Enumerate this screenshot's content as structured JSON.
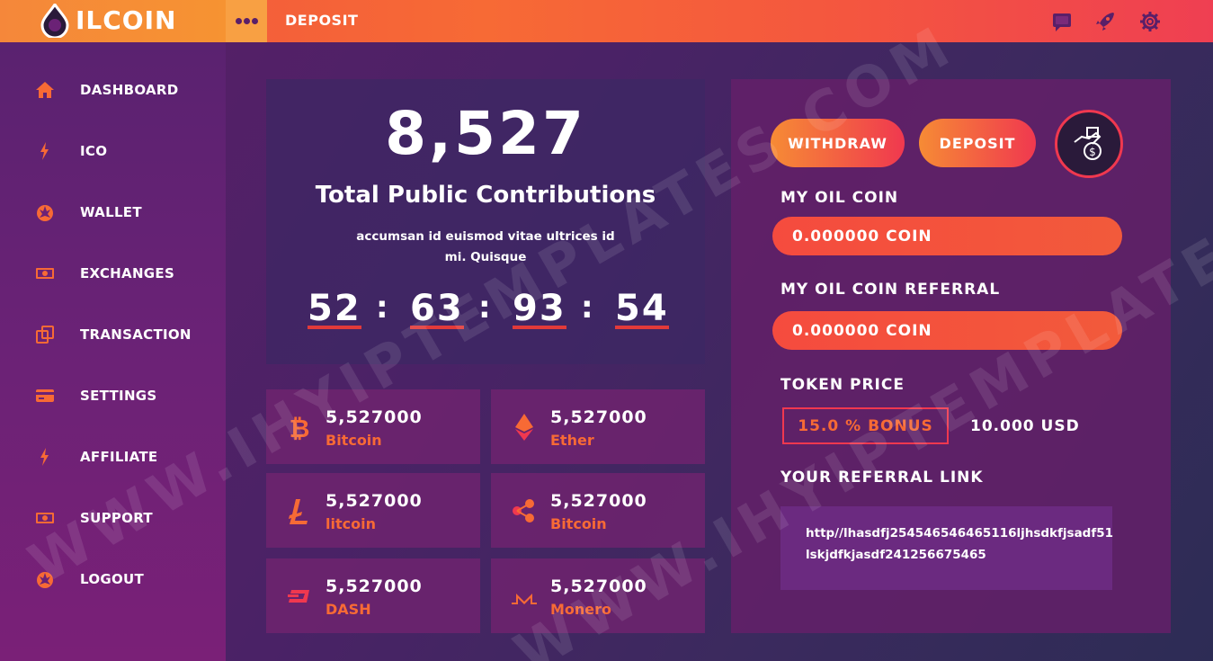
{
  "brand": {
    "logo_text": "ILCOIN"
  },
  "header": {
    "title": "DEPOSIT"
  },
  "sidebar": {
    "items": [
      {
        "label": "DASHBOARD",
        "icon": "home-icon"
      },
      {
        "label": "ICO",
        "icon": "bolt-icon"
      },
      {
        "label": "WALLET",
        "icon": "rebel-icon"
      },
      {
        "label": "EXCHANGES",
        "icon": "money-icon"
      },
      {
        "label": "TRANSACTION",
        "icon": "copy-icon"
      },
      {
        "label": "SETTINGS",
        "icon": "card-icon"
      },
      {
        "label": "AFFILIATE",
        "icon": "bolt-icon"
      },
      {
        "label": "SUPPORT",
        "icon": "money-icon"
      },
      {
        "label": "LOGOUT",
        "icon": "rebel-icon"
      }
    ]
  },
  "hero": {
    "number": "8,527",
    "title": "Total Public Contributions",
    "subtitle_line1": "accumsan id euismod vitae ultrices id",
    "subtitle_line2": "mi. Quisque",
    "countdown": [
      "52",
      "63",
      "93",
      "54"
    ]
  },
  "coins": [
    {
      "value": "5,527000",
      "name": "Bitcoin",
      "icon": "bitcoin-icon"
    },
    {
      "value": "5,527000",
      "name": "Ether",
      "icon": "ethereum-icon"
    },
    {
      "value": "5,527000",
      "name": "litcoin",
      "icon": "litecoin-icon"
    },
    {
      "value": "5,527000",
      "name": "Bitcoin",
      "icon": "ripple-icon"
    },
    {
      "value": "5,527000",
      "name": "DASH",
      "icon": "dash-icon"
    },
    {
      "value": "5,527000",
      "name": "Monero",
      "icon": "monero-icon"
    }
  ],
  "account": {
    "withdraw_label": "WITHDRAW",
    "deposit_label": "DEPOSIT",
    "my_oil_coin_label": "MY OIL COIN",
    "my_oil_coin_value": "0.000000 COIN",
    "referral_label": "MY OIL COIN REFERRAL",
    "referral_value": "0.000000 COIN",
    "token_price_label": "TOKEN PRICE",
    "bonus": "15.0 % BONUS",
    "price": "10.000 USD",
    "ref_link_label": "YOUR REFERRAL LINK",
    "ref_link_line1": "http//lhasdfj254546546465116ljhsdkfjsadf51",
    "ref_link_line2": "lskjdfkjasdf241256675465"
  },
  "watermark": "WWW.IHYIPTEMPLATES.COM",
  "colors": {
    "accent_orange": "#f76a35",
    "accent_red": "#f0384f",
    "sidebar": "#6b2276"
  }
}
